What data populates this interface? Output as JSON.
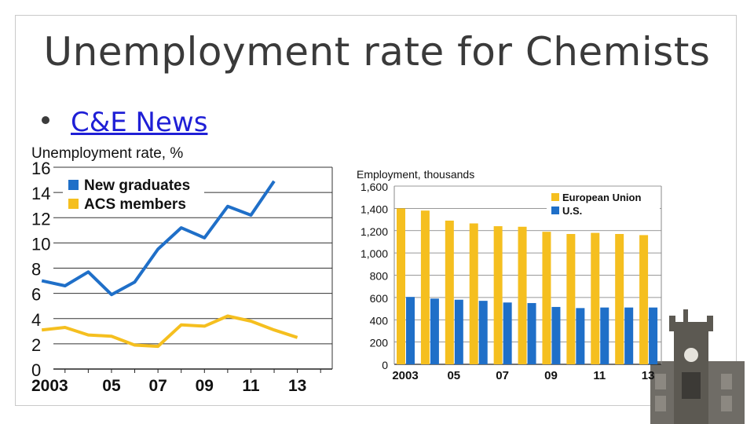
{
  "slide": {
    "title": "Unemployment rate for Chemists",
    "bullet_link": "C&E News"
  },
  "chart_data": [
    {
      "type": "line",
      "ylabel": "Unemployment rate, %",
      "ylim": [
        0,
        16
      ],
      "y_ticks": [
        "16",
        "14",
        "12",
        "10",
        "8",
        "6",
        "4",
        "2",
        "0"
      ],
      "x": [
        2002,
        2003,
        2004,
        2005,
        2006,
        2007,
        2008,
        2009,
        2010,
        2011,
        2012,
        2013,
        2014
      ],
      "x_tick_labels": [
        {
          "x": 2003,
          "label": "2003"
        },
        {
          "x": 2005,
          "label": "05"
        },
        {
          "x": 2007,
          "label": "07"
        },
        {
          "x": 2009,
          "label": "09"
        },
        {
          "x": 2011,
          "label": "11"
        },
        {
          "x": 2013,
          "label": "13"
        }
      ],
      "legend_position": "top-left",
      "series": [
        {
          "name": "New graduates",
          "color": "#1f6fc8",
          "values": [
            7.0,
            6.6,
            7.7,
            5.9,
            6.9,
            9.5,
            11.2,
            10.4,
            12.9,
            12.2,
            14.9,
            null,
            null
          ]
        },
        {
          "name": "ACS members",
          "color": "#f5bf1f",
          "values": [
            3.1,
            3.3,
            2.7,
            2.6,
            1.9,
            1.8,
            3.5,
            3.4,
            4.2,
            3.8,
            3.1,
            2.5,
            null
          ]
        }
      ]
    },
    {
      "type": "bar",
      "ylabel": "Employment, thousands",
      "ylim": [
        0,
        1600
      ],
      "y_ticks": [
        "1,600",
        "1,400",
        "1,200",
        "1,000",
        "800",
        "600",
        "400",
        "200",
        "0"
      ],
      "categories": [
        "2003",
        "2004",
        "2005",
        "2006",
        "2007",
        "2008",
        "2009",
        "2010",
        "2011",
        "2012",
        "2013"
      ],
      "x_tick_labels": [
        "2003",
        "",
        "05",
        "",
        "07",
        "",
        "09",
        "",
        "11",
        "",
        "13"
      ],
      "legend_position": "top-right",
      "series": [
        {
          "name": "European Union",
          "color": "#f5bf1f",
          "values": [
            1400,
            1380,
            1290,
            1265,
            1240,
            1235,
            1190,
            1170,
            1180,
            1170,
            1160
          ]
        },
        {
          "name": "U.S.",
          "color": "#1f6fc8",
          "values": [
            605,
            590,
            580,
            570,
            555,
            550,
            515,
            505,
            510,
            510,
            510
          ]
        }
      ]
    }
  ],
  "icons": {
    "building": "university-building-photo"
  }
}
